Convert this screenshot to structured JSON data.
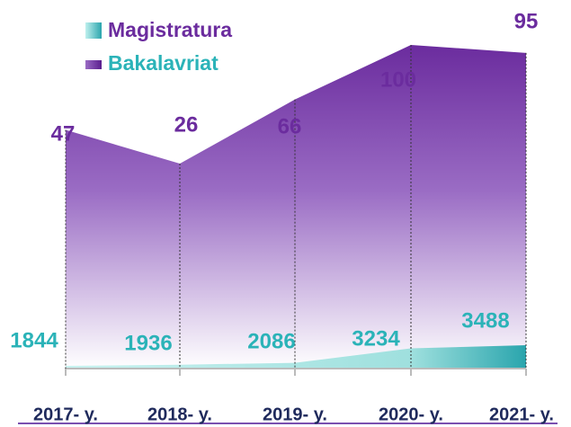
{
  "chart_data": {
    "type": "area",
    "categories": [
      "2017- y.",
      "2018- y.",
      "2019- y.",
      "2020- y.",
      "2021- y."
    ],
    "series": [
      {
        "name": "Magistratura",
        "color": "#2bb3b8",
        "values": [
          1844,
          1936,
          2086,
          3234,
          3488
        ]
      },
      {
        "name": "Bakalavriat",
        "color": "#6b2c9e",
        "values": [
          47,
          26,
          66,
          100,
          95
        ]
      }
    ]
  }
}
